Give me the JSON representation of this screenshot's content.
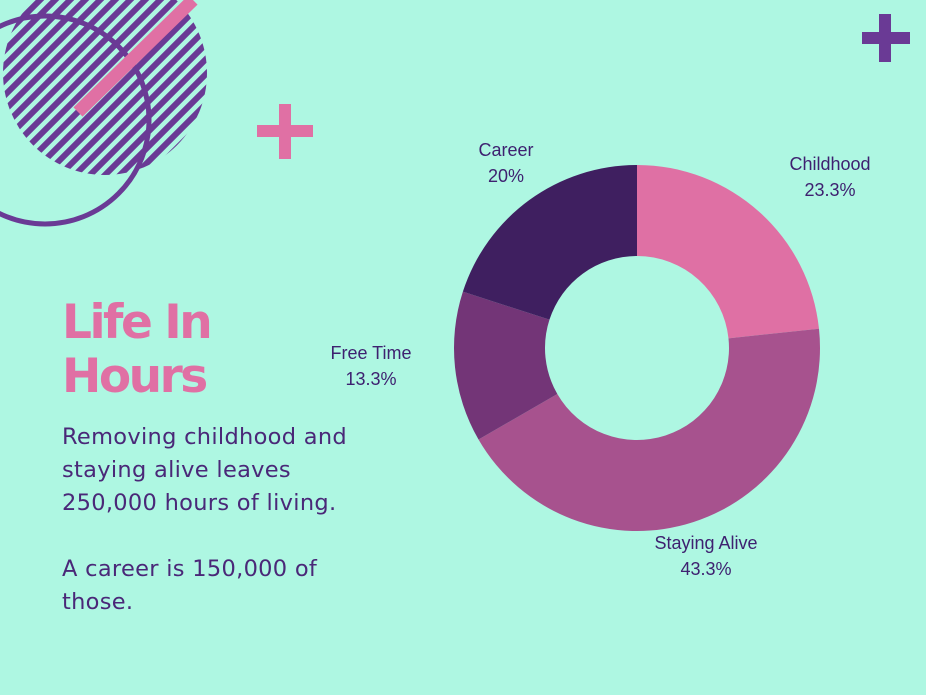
{
  "title": {
    "line1": "Life In",
    "line2": "Hours"
  },
  "description": {
    "paragraph1": "Removing childhood and staying alive leaves 250,000 hours of living.",
    "paragraph2": "A career is 150,000 of those."
  },
  "colors": {
    "background": "#aef7e2",
    "title": "#e070a4",
    "text": "#4a2878",
    "plus_pink": "#e070a4",
    "plus_purple": "#6a3a95"
  },
  "chart_data": {
    "type": "donut",
    "title": "",
    "slices": [
      {
        "label": "Childhood",
        "percent_text": "23.3%",
        "value": 23.3,
        "color": "#df70a4"
      },
      {
        "label": "Staying Alive",
        "percent_text": "43.3%",
        "value": 43.3,
        "color": "#a7528e"
      },
      {
        "label": "Free Time",
        "percent_text": "13.3%",
        "value": 13.3,
        "color": "#733577"
      },
      {
        "label": "Career",
        "percent_text": "20%",
        "value": 20,
        "color": "#3f1f60"
      }
    ],
    "start_angle": "12 o'clock",
    "direction": "clockwise",
    "legend": "none (slice labels outside)"
  }
}
